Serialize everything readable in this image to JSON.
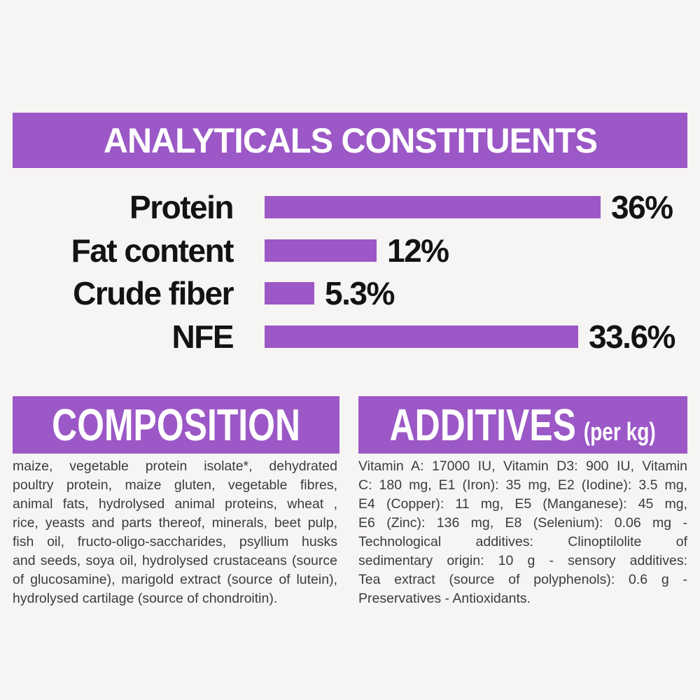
{
  "page": {
    "background_color": "#f7f4f4",
    "accent_color": "#9b58c6",
    "heading_text_color": "#ffffff",
    "label_text_color": "#131313",
    "body_text_color": "#3c3c3c"
  },
  "analyticals": {
    "title": "ANALYTICALS CONSTITUENTS",
    "chart_data": {
      "type": "bar",
      "orientation": "horizontal",
      "title": "ANALYTICALS CONSTITUENTS",
      "categories": [
        "Protein",
        "Fat content",
        "Crude fiber",
        "NFE"
      ],
      "values": [
        36,
        12,
        5.3,
        33.6
      ],
      "value_labels": [
        "36%",
        "12%",
        "5.3%",
        "33.6%"
      ],
      "unit": "%",
      "xlim": [
        0,
        40
      ],
      "bar_color": "#9b58c6",
      "grid": "off",
      "legend": "none"
    }
  },
  "composition": {
    "title": "COMPOSITION",
    "lines": [
      "maize, vegetable protein isolate*, dehydrated",
      "poultry protein, maize gluten, vegetable fibres,",
      "animal fats, hydrolysed animal proteins, wheat ,",
      "rice, yeasts and parts thereof, minerals, beet pulp,",
      "fish oil, fructo-oligo-saccharides, psyllium husks",
      "and seeds, soya oil, hydrolysed crustaceans (source",
      "of glucosamine), marigold extract (source of lutein),",
      "hydrolysed cartilage (source of chondroitin)."
    ]
  },
  "additives": {
    "title": "ADDITIVES",
    "subtitle": "(per kg)",
    "lines": [
      "Vitamin A: 17000 IU, Vitamin D3: 900 IU, Vitamin",
      "C: 180 mg, E1 (Iron): 35 mg, E2 (Iodine): 3.5 mg,",
      "E4 (Copper): 11 mg, E5 (Manganese): 45 mg,",
      "E6 (Zinc): 136 mg, E8 (Selenium): 0.06 mg -",
      "Technological additives: Clinoptilolite of",
      "sedimentary origin: 10 g - sensory additives:",
      "Tea extract (source of polyphenols): 0.6 g -",
      "Preservatives - Antioxidants."
    ]
  }
}
